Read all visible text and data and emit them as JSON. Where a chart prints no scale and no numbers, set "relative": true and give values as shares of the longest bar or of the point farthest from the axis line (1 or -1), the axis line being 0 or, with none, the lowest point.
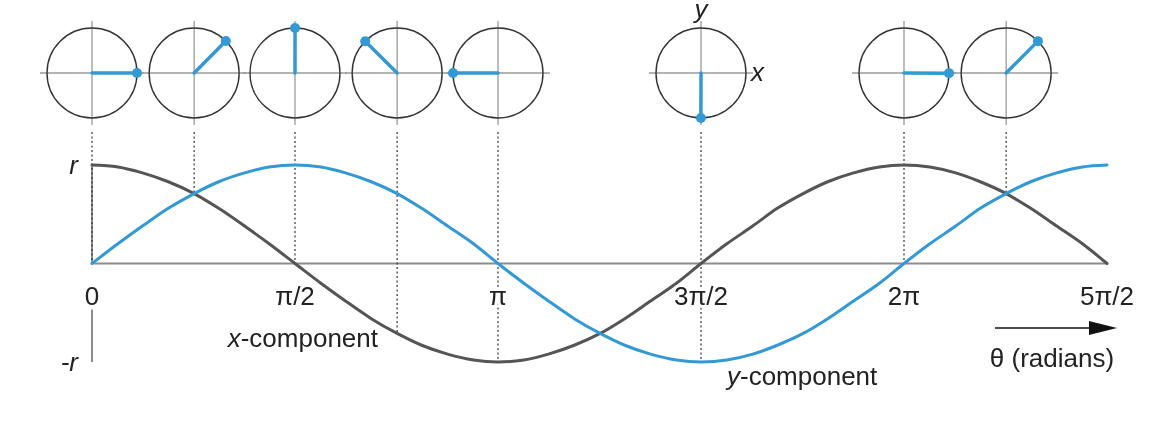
{
  "chart_data": {
    "type": "line",
    "relative": true,
    "xlabel": "θ (radians)",
    "x": [
      0,
      0.2,
      0.39,
      0.59,
      0.79,
      0.98,
      1.18,
      1.37,
      1.57,
      1.77,
      1.96,
      2.16,
      2.36,
      2.55,
      2.75,
      2.95,
      3.14,
      3.34,
      3.53,
      3.73,
      3.93,
      4.12,
      4.32,
      4.52,
      4.71,
      4.91,
      5.11,
      5.3,
      5.5,
      5.69,
      5.89,
      6.09,
      6.28,
      6.48,
      6.68,
      6.87,
      7.07,
      7.26,
      7.46,
      7.66,
      7.85
    ],
    "series": [
      {
        "name": "x-component",
        "color": "#555555",
        "values": [
          1,
          0.98,
          0.92,
          0.83,
          0.71,
          0.56,
          0.38,
          0.2,
          0,
          -0.2,
          -0.38,
          -0.56,
          -0.71,
          -0.83,
          -0.92,
          -0.98,
          -1,
          -0.98,
          -0.92,
          -0.83,
          -0.71,
          -0.56,
          -0.38,
          -0.2,
          0,
          0.2,
          0.38,
          0.56,
          0.71,
          0.83,
          0.92,
          0.98,
          1,
          0.98,
          0.92,
          0.83,
          0.71,
          0.56,
          0.38,
          0.2,
          0
        ]
      },
      {
        "name": "y-component",
        "color": "#3399d4",
        "values": [
          0,
          0.2,
          0.38,
          0.56,
          0.71,
          0.83,
          0.92,
          0.98,
          1,
          0.98,
          0.92,
          0.83,
          0.71,
          0.56,
          0.38,
          0.2,
          0,
          -0.2,
          -0.38,
          -0.56,
          -0.71,
          -0.83,
          -0.92,
          -0.98,
          -1,
          -0.98,
          -0.92,
          -0.83,
          -0.71,
          -0.56,
          -0.38,
          -0.2,
          0,
          0.2,
          0.38,
          0.56,
          0.71,
          0.83,
          0.92,
          0.98,
          1
        ]
      }
    ],
    "xlim": [
      0,
      7.85
    ],
    "xticks": [
      0,
      {
        "value": 1.57,
        "label": "π/2"
      },
      {
        "value": 3.14,
        "label": "π"
      },
      {
        "value": 4.71,
        "label": "3π/2"
      },
      {
        "value": 6.28,
        "label": "2π"
      },
      {
        "value": 7.85,
        "label": "5π/2"
      }
    ],
    "ref_lines": [
      {
        "axis": "x",
        "value": 0,
        "line_style": "dotted",
        "color": "#333333"
      },
      {
        "axis": "x",
        "value": 0.79,
        "line_style": "dotted",
        "color": "#333333"
      },
      {
        "axis": "x",
        "value": 1.57,
        "line_style": "dotted",
        "color": "#333333"
      },
      {
        "axis": "x",
        "value": 2.36,
        "line_style": "dotted",
        "color": "#333333"
      },
      {
        "axis": "x",
        "value": 3.14,
        "line_style": "dotted",
        "color": "#333333"
      },
      {
        "axis": "x",
        "value": 4.71,
        "line_style": "dotted",
        "color": "#333333"
      },
      {
        "axis": "x",
        "value": 6.28,
        "line_style": "dotted",
        "color": "#333333"
      },
      {
        "axis": "x",
        "value": 7.07,
        "line_style": "dotted",
        "color": "#333333"
      }
    ],
    "annotations": [
      "y",
      "x",
      {
        "text": "r",
        "x": 0,
        "y": 1
      },
      "-r"
    ]
  }
}
